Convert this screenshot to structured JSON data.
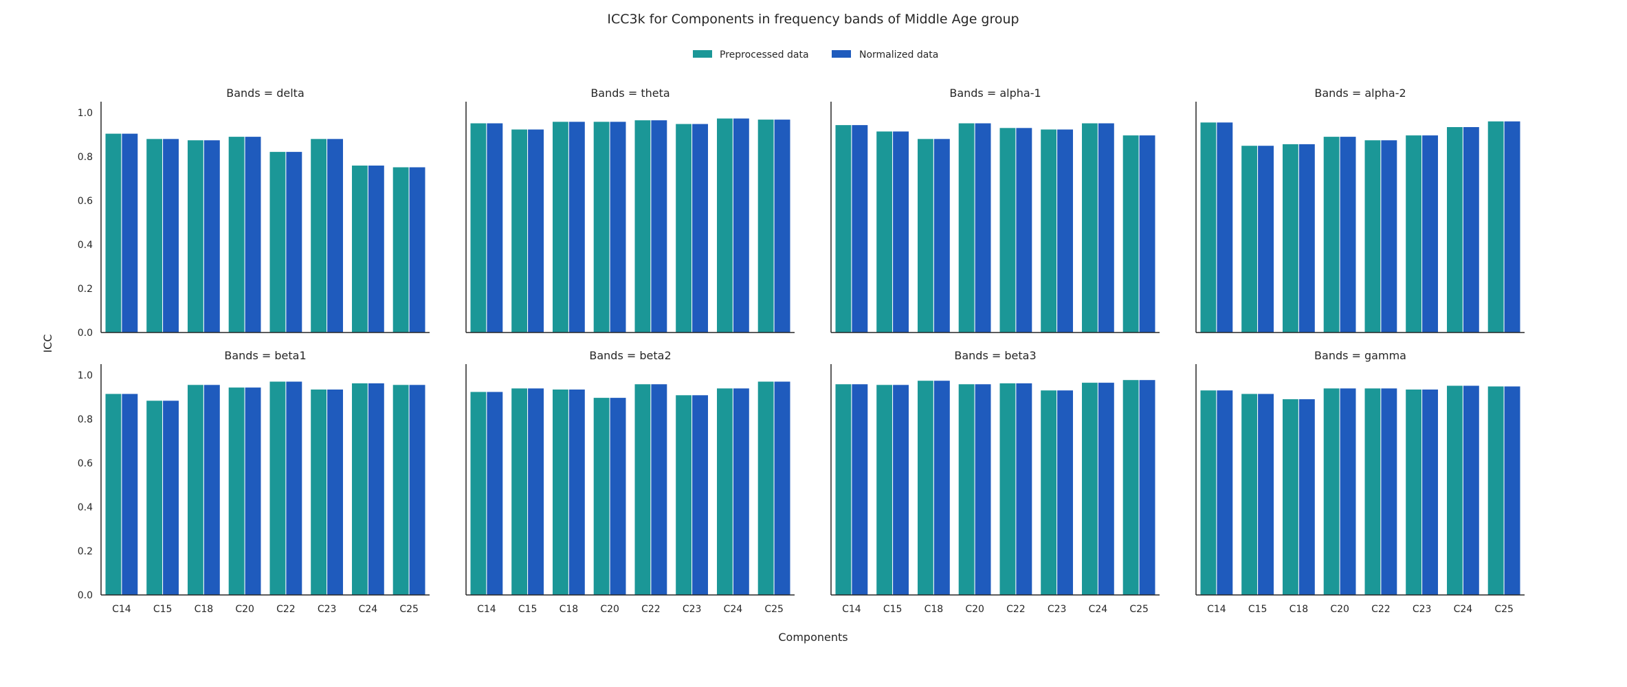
{
  "colors": {
    "preprocessed": "#1b9797",
    "normalized": "#1f5bbd",
    "axis": "#262626"
  },
  "chart_data": {
    "type": "bar",
    "title": "ICC3k for Components in frequency bands of Middle Age group",
    "xlabel": "Components",
    "ylabel": "ICC",
    "ylim": [
      0,
      1.05
    ],
    "yticks": [
      "0.0",
      "0.2",
      "0.4",
      "0.6",
      "0.8",
      "1.0"
    ],
    "legend": {
      "placement": "top-center",
      "entries": [
        "Preprocessed data",
        "Normalized data"
      ]
    },
    "categories": [
      "C14",
      "C15",
      "C18",
      "C20",
      "C22",
      "C23",
      "C24",
      "C25"
    ],
    "panels": [
      {
        "title": "Bands = delta",
        "series": [
          {
            "name": "Preprocessed data",
            "values": [
              0.906,
              0.882,
              0.876,
              0.892,
              0.823,
              0.882,
              0.761,
              0.753
            ]
          },
          {
            "name": "Normalized data",
            "values": [
              0.906,
              0.882,
              0.876,
              0.892,
              0.823,
              0.882,
              0.761,
              0.753
            ]
          }
        ]
      },
      {
        "title": "Bands = theta",
        "series": [
          {
            "name": "Preprocessed data",
            "values": [
              0.953,
              0.925,
              0.96,
              0.96,
              0.967,
              0.95,
              0.975,
              0.97
            ]
          },
          {
            "name": "Normalized data",
            "values": [
              0.953,
              0.925,
              0.96,
              0.96,
              0.967,
              0.95,
              0.975,
              0.97
            ]
          }
        ]
      },
      {
        "title": "Bands = alpha-1",
        "series": [
          {
            "name": "Preprocessed data",
            "values": [
              0.945,
              0.916,
              0.882,
              0.953,
              0.932,
              0.925,
              0.953,
              0.898
            ]
          },
          {
            "name": "Normalized data",
            "values": [
              0.945,
              0.916,
              0.882,
              0.953,
              0.932,
              0.925,
              0.953,
              0.898
            ]
          }
        ]
      },
      {
        "title": "Bands = alpha-2",
        "series": [
          {
            "name": "Preprocessed data",
            "values": [
              0.957,
              0.851,
              0.858,
              0.892,
              0.876,
              0.898,
              0.936,
              0.962
            ]
          },
          {
            "name": "Normalized data",
            "values": [
              0.957,
              0.851,
              0.858,
              0.892,
              0.876,
              0.898,
              0.936,
              0.962
            ]
          }
        ]
      },
      {
        "title": "Bands = beta1",
        "series": [
          {
            "name": "Preprocessed data",
            "values": [
              0.916,
              0.885,
              0.957,
              0.945,
              0.972,
              0.936,
              0.964,
              0.957
            ]
          },
          {
            "name": "Normalized data",
            "values": [
              0.916,
              0.885,
              0.957,
              0.945,
              0.972,
              0.936,
              0.964,
              0.957
            ]
          }
        ]
      },
      {
        "title": "Bands = beta2",
        "series": [
          {
            "name": "Preprocessed data",
            "values": [
              0.925,
              0.941,
              0.936,
              0.898,
              0.96,
              0.91,
              0.941,
              0.972
            ]
          },
          {
            "name": "Normalized data",
            "values": [
              0.925,
              0.941,
              0.936,
              0.898,
              0.96,
              0.91,
              0.941,
              0.972
            ]
          }
        ]
      },
      {
        "title": "Bands = beta3",
        "series": [
          {
            "name": "Preprocessed data",
            "values": [
              0.96,
              0.957,
              0.976,
              0.96,
              0.964,
              0.932,
              0.967,
              0.979
            ]
          },
          {
            "name": "Normalized data",
            "values": [
              0.96,
              0.957,
              0.976,
              0.96,
              0.964,
              0.932,
              0.967,
              0.979
            ]
          }
        ]
      },
      {
        "title": "Bands = gamma",
        "series": [
          {
            "name": "Preprocessed data",
            "values": [
              0.932,
              0.916,
              0.892,
              0.941,
              0.941,
              0.936,
              0.953,
              0.95
            ]
          },
          {
            "name": "Normalized data",
            "values": [
              0.932,
              0.916,
              0.892,
              0.941,
              0.941,
              0.936,
              0.953,
              0.95
            ]
          }
        ]
      }
    ]
  }
}
